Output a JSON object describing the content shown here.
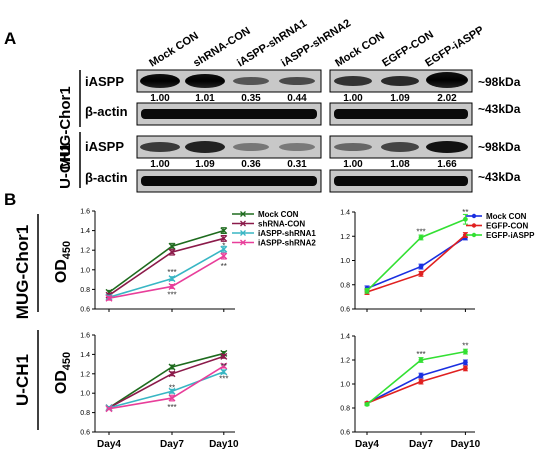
{
  "panel_labels": {
    "a": "A",
    "b": "B"
  },
  "blot": {
    "lane_labels_left": [
      "Mock CON",
      "shRNA-CON",
      "iASPP-shRNA1",
      "iASPP-shRNA2"
    ],
    "lane_labels_right": [
      "Mock CON",
      "EGFP-CON",
      "EGFP-iASPP"
    ],
    "row_label_mug": "MUG-Chor1",
    "row_label_uch1": "U-CH1",
    "protein_iaspp": "iASPP",
    "protein_actin": "β-actin",
    "size_iaspp": "~98kDa",
    "size_actin": "~43kDa",
    "mug_quant_left": [
      "1.00",
      "1.01",
      "0.35",
      "0.44"
    ],
    "mug_quant_right": [
      "1.00",
      "1.09",
      "2.02"
    ],
    "uch1_quant_left": [
      "1.00",
      "1.09",
      "0.36",
      "0.31"
    ],
    "uch1_quant_right": [
      "1.00",
      "1.08",
      "1.66"
    ]
  },
  "row_labels_b": {
    "mug": "MUG-Chor1",
    "uch1": "U-CH1"
  },
  "od_label": {
    "main": "OD",
    "sub": "450"
  },
  "chart_data": [
    {
      "type": "line",
      "panel": "MUG-Chor1 knockdown",
      "categories": [
        "Day4",
        "Day7",
        "Day10"
      ],
      "ylim": [
        0.6,
        1.6
      ],
      "yticks": [
        "0.6",
        "0.8",
        "1.0",
        "1.2",
        "1.4",
        "1.6"
      ],
      "legend_position": "top-right",
      "series": [
        {
          "name": "Mock CON",
          "color": "#1e6b1e",
          "values": [
            0.77,
            1.24,
            1.4
          ],
          "errors": [
            0.02,
            0.03,
            0.03
          ]
        },
        {
          "name": "shRNA-CON",
          "color": "#8b1a4a",
          "values": [
            0.74,
            1.18,
            1.32
          ],
          "errors": [
            0.02,
            0.03,
            0.03
          ]
        },
        {
          "name": "iASPP-shRNA1",
          "color": "#38b6c4",
          "values": [
            0.72,
            0.91,
            1.21
          ],
          "errors": [
            0.02,
            0.02,
            0.03
          ]
        },
        {
          "name": "iASPP-shRNA2",
          "color": "#e83e9a",
          "values": [
            0.71,
            0.83,
            1.14
          ],
          "errors": [
            0.02,
            0.02,
            0.03
          ]
        }
      ],
      "annotations": [
        {
          "x": "Day7",
          "y": 0.98,
          "text": "***"
        },
        {
          "x": "Day7",
          "y": 0.75,
          "text": "***"
        },
        {
          "x": "Day10",
          "y": 1.25,
          "text": "*"
        },
        {
          "x": "Day10",
          "y": 1.04,
          "text": "**"
        }
      ]
    },
    {
      "type": "line",
      "panel": "MUG-Chor1 overexpression",
      "categories": [
        "Day4",
        "Day7",
        "Day10"
      ],
      "ylim": [
        0.6,
        1.4
      ],
      "yticks": [
        "0.6",
        "0.8",
        "1.0",
        "1.2",
        "1.4"
      ],
      "legend_position": "top-right",
      "series": [
        {
          "name": "Mock CON",
          "color": "#1a2fe0",
          "values": [
            0.77,
            0.95,
            1.19
          ],
          "errors": [
            0.02,
            0.02,
            0.02
          ]
        },
        {
          "name": "EGFP-CON",
          "color": "#e02020",
          "values": [
            0.74,
            0.89,
            1.21
          ],
          "errors": [
            0.02,
            0.02,
            0.02
          ]
        },
        {
          "name": "EGFP-iASPP",
          "color": "#33e033",
          "values": [
            0.75,
            1.19,
            1.34
          ],
          "errors": [
            0.02,
            0.02,
            0.04
          ]
        }
      ],
      "annotations": [
        {
          "x": "Day7",
          "y": 1.24,
          "text": "***"
        },
        {
          "x": "Day10",
          "y": 1.4,
          "text": "**"
        }
      ]
    },
    {
      "type": "line",
      "panel": "U-CH1 knockdown",
      "categories": [
        "Day4",
        "Day7",
        "Day10"
      ],
      "ylim": [
        0.6,
        1.6
      ],
      "yticks": [
        "0.6",
        "0.8",
        "1.0",
        "1.2",
        "1.4",
        "1.6"
      ],
      "series": [
        {
          "name": "Mock CON",
          "color": "#1e6b1e",
          "values": [
            0.85,
            1.27,
            1.41
          ],
          "errors": [
            0.01,
            0.02,
            0.02
          ]
        },
        {
          "name": "shRNA-CON",
          "color": "#8b1a4a",
          "values": [
            0.85,
            1.2,
            1.38
          ],
          "errors": [
            0.01,
            0.02,
            0.02
          ]
        },
        {
          "name": "iASPP-shRNA1",
          "color": "#38b6c4",
          "values": [
            0.85,
            1.02,
            1.22
          ],
          "errors": [
            0.01,
            0.02,
            0.02
          ]
        },
        {
          "name": "iASPP-shRNA2",
          "color": "#e83e9a",
          "values": [
            0.84,
            0.95,
            1.28
          ],
          "errors": [
            0.01,
            0.03,
            0.02
          ]
        }
      ],
      "annotations": [
        {
          "x": "Day7",
          "y": 1.06,
          "text": "**"
        },
        {
          "x": "Day7",
          "y": 0.86,
          "text": "***"
        },
        {
          "x": "Day10",
          "y": 1.28,
          "text": "**"
        },
        {
          "x": "Day10",
          "y": 1.15,
          "text": "***"
        }
      ]
    },
    {
      "type": "line",
      "panel": "U-CH1 overexpression",
      "categories": [
        "Day4",
        "Day7",
        "Day10"
      ],
      "ylim": [
        0.6,
        1.4
      ],
      "yticks": [
        "0.6",
        "0.8",
        "1.0",
        "1.2",
        "1.4"
      ],
      "series": [
        {
          "name": "Mock CON",
          "color": "#1a2fe0",
          "values": [
            0.84,
            1.07,
            1.18
          ],
          "errors": [
            0.01,
            0.02,
            0.02
          ]
        },
        {
          "name": "EGFP-CON",
          "color": "#e02020",
          "values": [
            0.84,
            1.02,
            1.13
          ],
          "errors": [
            0.01,
            0.02,
            0.02
          ]
        },
        {
          "name": "EGFP-iASPP",
          "color": "#33e033",
          "values": [
            0.83,
            1.2,
            1.27
          ],
          "errors": [
            0.01,
            0.02,
            0.02
          ]
        }
      ],
      "annotations": [
        {
          "x": "Day7",
          "y": 1.25,
          "text": "***"
        },
        {
          "x": "Day10",
          "y": 1.32,
          "text": "**"
        }
      ]
    }
  ]
}
